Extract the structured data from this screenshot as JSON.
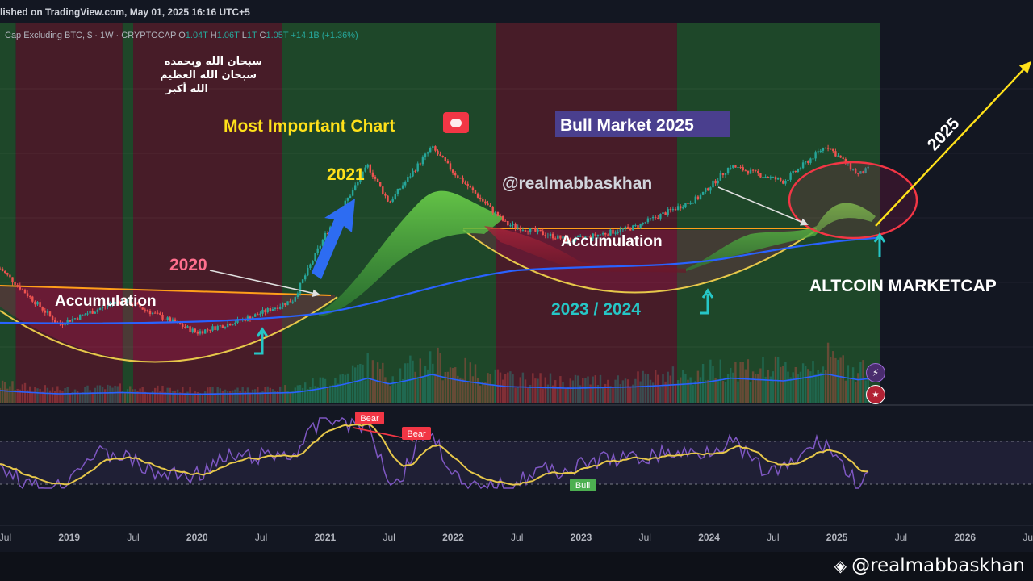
{
  "header": {
    "published": "lished on TradingView.com, May 01, 2025 16:16 UTC+5"
  },
  "symbol": {
    "name": "Cap Excluding BTC, $ · 1W · CRYPTOCAP",
    "o_label": "O",
    "o": "1.04T",
    "h_label": "H",
    "h": "1.06T",
    "l_label": "L",
    "l": "1T",
    "c_label": "C",
    "c": "1.05T",
    "change": "+14.1B (+1.36%)"
  },
  "watermark": {
    "text": "@realmabbaskhan"
  },
  "side_icons": [
    "lightning-icon",
    "us-flag-icon"
  ],
  "colors": {
    "background": "#131722",
    "bull_zone": "#1f4a2a",
    "accumulation_zone": "#4a1c29",
    "accent_yellow": "#ffe11a",
    "accent_pink": "#ff6f8e",
    "accent_teal": "#26c6c6",
    "ma_blue": "#2962ff",
    "rsi_purple": "#7e57c2"
  },
  "chart_data": {
    "type": "candlestick",
    "title": "",
    "x_axis_labels": [
      "Jul",
      "2019",
      "Jul",
      "2020",
      "Jul",
      "2021",
      "Jul",
      "2022",
      "Jul",
      "2023",
      "Jul",
      "2024",
      "Jul",
      "2025",
      "Jul",
      "2026",
      "Jul"
    ],
    "x_range": [
      "2018-05",
      "2026-07"
    ],
    "shaded_periods": [
      {
        "kind": "bull",
        "from": "2018-05",
        "to": "2018-08"
      },
      {
        "kind": "accumulation",
        "from": "2018-08",
        "to": "2019-06"
      },
      {
        "kind": "bull",
        "from": "2019-06",
        "to": "2019-07"
      },
      {
        "kind": "accumulation",
        "from": "2019-07",
        "to": "2020-09"
      },
      {
        "kind": "bull",
        "from": "2020-09",
        "to": "2022-05"
      },
      {
        "kind": "accumulation",
        "from": "2022-05",
        "to": "2023-10"
      },
      {
        "kind": "bull",
        "from": "2023-10",
        "to": "2025-05"
      }
    ],
    "price_series_approx": [
      {
        "x": "2018-06",
        "y": 0.22
      },
      {
        "x": "2018-12",
        "y": 0.08
      },
      {
        "x": "2019-06",
        "y": 0.12
      },
      {
        "x": "2020-01",
        "y": 0.07
      },
      {
        "x": "2020-06",
        "y": 0.09
      },
      {
        "x": "2020-10",
        "y": 0.12
      },
      {
        "x": "2021-01",
        "y": 0.35
      },
      {
        "x": "2021-05",
        "y": 1.1
      },
      {
        "x": "2021-07",
        "y": 0.6
      },
      {
        "x": "2021-11",
        "y": 1.5
      },
      {
        "x": "2022-01",
        "y": 1.0
      },
      {
        "x": "2022-06",
        "y": 0.42
      },
      {
        "x": "2022-12",
        "y": 0.32
      },
      {
        "x": "2023-06",
        "y": 0.4
      },
      {
        "x": "2023-12",
        "y": 0.65
      },
      {
        "x": "2024-03",
        "y": 1.1
      },
      {
        "x": "2024-08",
        "y": 0.85
      },
      {
        "x": "2024-12",
        "y": 1.55
      },
      {
        "x": "2025-03",
        "y": 0.95
      },
      {
        "x": "2025-04",
        "y": 1.05
      }
    ],
    "annotations": [
      {
        "text": "Most Important Chart",
        "color": "#ffe11a"
      },
      {
        "text": "Bull Market 2025",
        "color": "#ffffff"
      },
      {
        "text": "@realmabbaskhan",
        "color": "#d1d4dc"
      },
      {
        "text": "2021",
        "color": "#ffe11a"
      },
      {
        "text": "2020",
        "color": "#ff6f8e"
      },
      {
        "text": "Accumulation",
        "color": "#ffffff"
      },
      {
        "text": "Accumulation",
        "color": "#ffffff"
      },
      {
        "text": "2023 / 2024",
        "color": "#26c6c6"
      },
      {
        "text": "ALTCOIN MARKETCAP",
        "color": "#ffffff"
      },
      {
        "text": "2025",
        "color": "#ffffff"
      },
      {
        "text": "سبحان الله وبحمده",
        "color": "#ffffff"
      },
      {
        "text": "سبحان الله العظيم",
        "color": "#ffffff"
      },
      {
        "text": "الله أكبر",
        "color": "#ffffff"
      }
    ],
    "rsi_labels": [
      {
        "text": "Bear",
        "color": "#f23645"
      },
      {
        "text": "Bear",
        "color": "#f23645"
      },
      {
        "text": "Bull",
        "color": "#4caf50"
      }
    ]
  }
}
